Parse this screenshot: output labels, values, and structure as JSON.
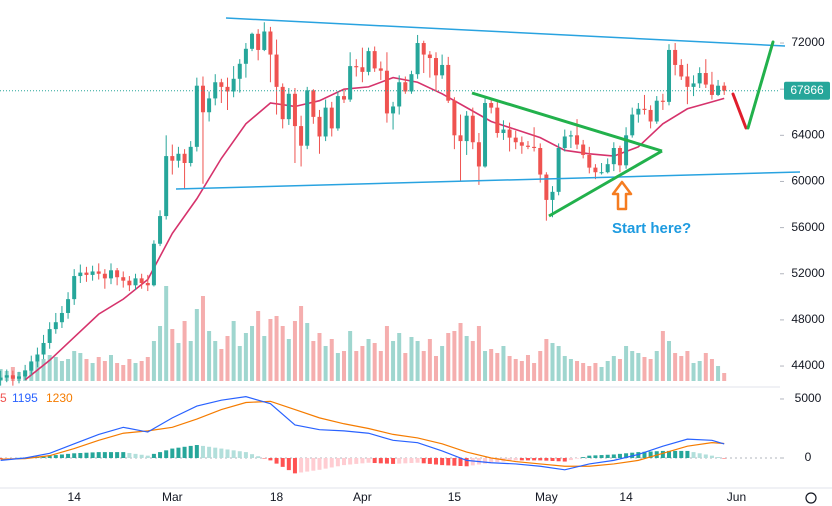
{
  "chart_data": {
    "type": "candlestick",
    "up_color": "#26a69a",
    "down_color": "#ef5350",
    "xlim": [
      -0.1,
      127.1
    ],
    "ylim": [
      42270,
      75730
    ],
    "yticks": [
      44000,
      48000,
      52000,
      56000,
      60000,
      64000,
      68000,
      72000
    ],
    "xticks": [
      {
        "value": 12,
        "label": "14"
      },
      {
        "value": 28,
        "label": "Mar"
      },
      {
        "value": 45,
        "label": "18"
      },
      {
        "value": 59,
        "label": "Apr"
      },
      {
        "value": 74,
        "label": "15"
      },
      {
        "value": 89,
        "label": "May"
      },
      {
        "value": 102,
        "label": "14"
      },
      {
        "value": 120,
        "label": "Jun"
      }
    ],
    "open": [
      42800,
      43000,
      43200,
      42900,
      43100,
      43600,
      44400,
      45000,
      46000,
      47200,
      47800,
      48600,
      49800,
      51800,
      52100,
      51900,
      52200,
      52000,
      51600,
      52300,
      51700,
      51400,
      51000,
      51600,
      51200,
      51000,
      54600,
      57000,
      62200,
      61800,
      62400,
      61600,
      63000,
      68300,
      66000,
      67200,
      68600,
      68200,
      67800,
      68900,
      70200,
      71500,
      72800,
      71400,
      73000,
      71000,
      68200,
      65400,
      67600,
      64800,
      63100,
      67900,
      65600,
      63900,
      66400,
      64600,
      67400,
      67100,
      70000,
      69900,
      69500,
      71300,
      69800,
      69600,
      65900,
      66500,
      68600,
      67800,
      69300,
      72000,
      71000,
      70700,
      69200,
      70100,
      67000,
      64000,
      63500,
      65700,
      63400,
      61300,
      66800,
      66400,
      64200,
      64500,
      63800,
      63400,
      63100,
      63000,
      62900,
      60600,
      58400,
      59100,
      62900,
      63900,
      64000,
      63200,
      62300,
      61200,
      60800,
      60800,
      61500,
      62900,
      61400,
      64000,
      65800,
      66300,
      66200,
      65200,
      67000,
      66900,
      71400,
      70100,
      69100,
      68200,
      68500,
      69400,
      68400,
      67500,
      68300
    ],
    "high": [
      43600,
      43700,
      43600,
      43500,
      44100,
      44900,
      45600,
      46700,
      47800,
      48600,
      49200,
      50400,
      52400,
      52800,
      52600,
      52700,
      52900,
      52400,
      52900,
      52500,
      52200,
      51800,
      52000,
      52000,
      51900,
      54900,
      57500,
      64000,
      63200,
      63000,
      62800,
      63500,
      69000,
      69100,
      67800,
      69300,
      68900,
      69000,
      70000,
      70600,
      72000,
      72900,
      73200,
      73800,
      73400,
      72300,
      68500,
      68100,
      68100,
      65700,
      68200,
      68000,
      66200,
      67100,
      66900,
      67800,
      68000,
      71200,
      70600,
      71600,
      71600,
      71700,
      70400,
      71200,
      66900,
      69200,
      69100,
      69600,
      72700,
      72200,
      71300,
      71200,
      71000,
      70800,
      67300,
      65800,
      66100,
      66400,
      64200,
      67200,
      67200,
      67000,
      65300,
      65100,
      64400,
      63900,
      63500,
      64700,
      63300,
      60800,
      59600,
      63300,
      64500,
      64400,
      65400,
      63600,
      63000,
      61500,
      61600,
      62000,
      63400,
      63100,
      64700,
      66400,
      66800,
      67500,
      66600,
      67400,
      67600,
      71900,
      72000,
      70600,
      70200,
      69200,
      69900,
      70600,
      69500,
      68800,
      68600
    ],
    "low": [
      42300,
      42600,
      42300,
      42500,
      42800,
      43200,
      43900,
      44600,
      45500,
      46800,
      47300,
      48100,
      49300,
      51200,
      51300,
      51400,
      51500,
      50700,
      51100,
      51000,
      50800,
      50500,
      50600,
      50700,
      50500,
      50900,
      54400,
      56700,
      60600,
      61200,
      59300,
      61300,
      62600,
      59800,
      65200,
      66600,
      66800,
      66200,
      67300,
      67700,
      69000,
      71300,
      70500,
      71300,
      68600,
      65800,
      64600,
      64900,
      61600,
      61300,
      62800,
      65000,
      62400,
      63500,
      63900,
      64400,
      66800,
      66900,
      69100,
      68600,
      69200,
      69500,
      68800,
      65100,
      64500,
      65800,
      67600,
      67600,
      68900,
      69400,
      69000,
      67800,
      68900,
      66800,
      62800,
      60000,
      62300,
      62800,
      59700,
      61200,
      65900,
      63800,
      63600,
      62600,
      62800,
      62400,
      62800,
      62600,
      59900,
      56600,
      56900,
      58800,
      62600,
      62900,
      62800,
      62000,
      60700,
      60200,
      60600,
      60700,
      60900,
      60800,
      61100,
      63800,
      65100,
      65800,
      64600,
      65000,
      66200,
      66600,
      69200,
      68800,
      66700,
      67400,
      68100,
      68100,
      67100,
      67400,
      67500
    ],
    "close": [
      43000,
      43200,
      42900,
      43100,
      43600,
      44400,
      45000,
      46000,
      47200,
      47800,
      48600,
      49800,
      51800,
      52100,
      51900,
      52200,
      52000,
      51600,
      52300,
      51700,
      51400,
      51000,
      51600,
      51200,
      51000,
      54600,
      57000,
      62200,
      61800,
      62400,
      61600,
      63000,
      68300,
      66000,
      67200,
      68600,
      68200,
      67800,
      68900,
      70200,
      71500,
      72800,
      71400,
      73000,
      71000,
      68200,
      65400,
      67600,
      64800,
      63100,
      67900,
      65600,
      63900,
      66400,
      64600,
      67400,
      67100,
      70000,
      69900,
      69500,
      71300,
      69800,
      69600,
      65900,
      66500,
      68600,
      67800,
      69300,
      72000,
      71000,
      70700,
      69200,
      70100,
      67000,
      64000,
      63500,
      65700,
      63400,
      61300,
      66800,
      66400,
      64200,
      64500,
      63800,
      63400,
      63100,
      63000,
      62900,
      60600,
      58400,
      59100,
      62900,
      63900,
      64000,
      63200,
      62300,
      61200,
      60800,
      60800,
      61500,
      62900,
      61400,
      64000,
      65800,
      66300,
      66200,
      65200,
      67000,
      66900,
      71400,
      70100,
      69100,
      68200,
      68500,
      69400,
      68400,
      67500,
      68300,
      67866
    ],
    "volume": [
      12,
      10,
      14,
      9,
      11,
      18,
      20,
      22,
      26,
      24,
      20,
      22,
      30,
      28,
      22,
      18,
      24,
      20,
      26,
      18,
      16,
      22,
      18,
      20,
      24,
      40,
      55,
      95,
      52,
      38,
      60,
      40,
      72,
      85,
      50,
      40,
      32,
      45,
      60,
      35,
      48,
      55,
      70,
      45,
      62,
      65,
      55,
      42,
      60,
      75,
      58,
      40,
      48,
      35,
      42,
      28,
      30,
      50,
      30,
      35,
      42,
      38,
      30,
      55,
      40,
      48,
      28,
      44,
      40,
      30,
      42,
      25,
      35,
      48,
      50,
      58,
      45,
      40,
      55,
      30,
      32,
      28,
      35,
      25,
      22,
      20,
      26,
      18,
      30,
      42,
      38,
      35,
      25,
      22,
      20,
      18,
      15,
      18,
      14,
      20,
      25,
      22,
      35,
      30,
      28,
      24,
      22,
      30,
      50,
      40,
      28,
      25,
      30,
      18,
      20,
      28,
      22,
      15,
      8
    ],
    "volume_colors": [
      "#9fd6cf",
      "#f5aeae"
    ],
    "ma": {
      "color": "#d6336c",
      "x": [
        4,
        8,
        12,
        16,
        20,
        24,
        28,
        32,
        36,
        40,
        44,
        48,
        52,
        56,
        60,
        64,
        68,
        72,
        76,
        80,
        84,
        88,
        92,
        96,
        100,
        104,
        108,
        112,
        116,
        118
      ],
      "values": [
        42800,
        44500,
        46500,
        48500,
        49800,
        51500,
        55500,
        58500,
        62000,
        65000,
        66800,
        66500,
        67000,
        68000,
        68200,
        69000,
        68600,
        67600,
        66400,
        65200,
        64500,
        63800,
        62700,
        62400,
        62200,
        63000,
        65000,
        66300,
        66900,
        67200
      ]
    },
    "indicator_label": "5",
    "macd_ylim": [
      -2540,
      5930
    ],
    "macd_yticks": [
      0,
      5000
    ],
    "macd": {
      "color": "#2962ff",
      "x": [
        0,
        4,
        8,
        12,
        16,
        20,
        24,
        28,
        32,
        36,
        40,
        44,
        48,
        52,
        56,
        60,
        64,
        68,
        72,
        76,
        80,
        84,
        88,
        92,
        96,
        100,
        104,
        108,
        112,
        116,
        118
      ],
      "values": [
        -200,
        0,
        400,
        1200,
        2000,
        2600,
        2200,
        3400,
        4400,
        4900,
        5200,
        4600,
        2800,
        2400,
        2300,
        2100,
        1500,
        1300,
        600,
        -200,
        -400,
        -500,
        -700,
        -1000,
        -500,
        -200,
        300,
        1000,
        1600,
        1500,
        1195
      ]
    },
    "signal": {
      "color": "#f57c00",
      "x": [
        0,
        4,
        8,
        12,
        16,
        20,
        24,
        28,
        32,
        36,
        40,
        44,
        48,
        52,
        56,
        60,
        64,
        68,
        72,
        76,
        80,
        84,
        88,
        92,
        96,
        100,
        104,
        108,
        112,
        116,
        118
      ],
      "values": [
        -100,
        -50,
        200,
        800,
        1500,
        2100,
        2300,
        2600,
        3300,
        4100,
        4700,
        4800,
        4100,
        3400,
        2900,
        2500,
        2000,
        1700,
        1200,
        500,
        0,
        -300,
        -500,
        -700,
        -700,
        -500,
        -200,
        400,
        1000,
        1300,
        1230
      ]
    },
    "histogram": [
      -100,
      -60,
      -25,
      15,
      50,
      90,
      125,
      165,
      200,
      250,
      300,
      350,
      400,
      425,
      450,
      475,
      500,
      500,
      500,
      500,
      500,
      425,
      350,
      275,
      200,
      350,
      500,
      650,
      800,
      875,
      950,
      1025,
      1100,
      1025,
      950,
      875,
      800,
      725,
      650,
      575,
      500,
      325,
      150,
      -25,
      -200,
      -475,
      -750,
      -1025,
      -1300,
      -1225,
      -1150,
      -1075,
      -1000,
      -900,
      -800,
      -700,
      -600,
      -550,
      -500,
      -450,
      -400,
      -425,
      -450,
      -475,
      -500,
      -475,
      -450,
      -425,
      -400,
      -450,
      -500,
      -550,
      -600,
      -625,
      -650,
      -675,
      -700,
      -625,
      -550,
      -475,
      -400,
      -350,
      -300,
      -250,
      -200,
      -200,
      -200,
      -200,
      -200,
      -225,
      -250,
      -275,
      -300,
      -175,
      -50,
      75,
      200,
      225,
      250,
      275,
      300,
      350,
      400,
      450,
      500,
      525,
      550,
      575,
      600,
      600,
      600,
      600,
      600,
      500,
      400,
      300,
      200,
      80,
      -35
    ],
    "histogram_colors": [
      "#26a69a",
      "#b2dfdb",
      "#ff5252",
      "#ffcdd2"
    ],
    "annotation": "Start here?"
  }
}
